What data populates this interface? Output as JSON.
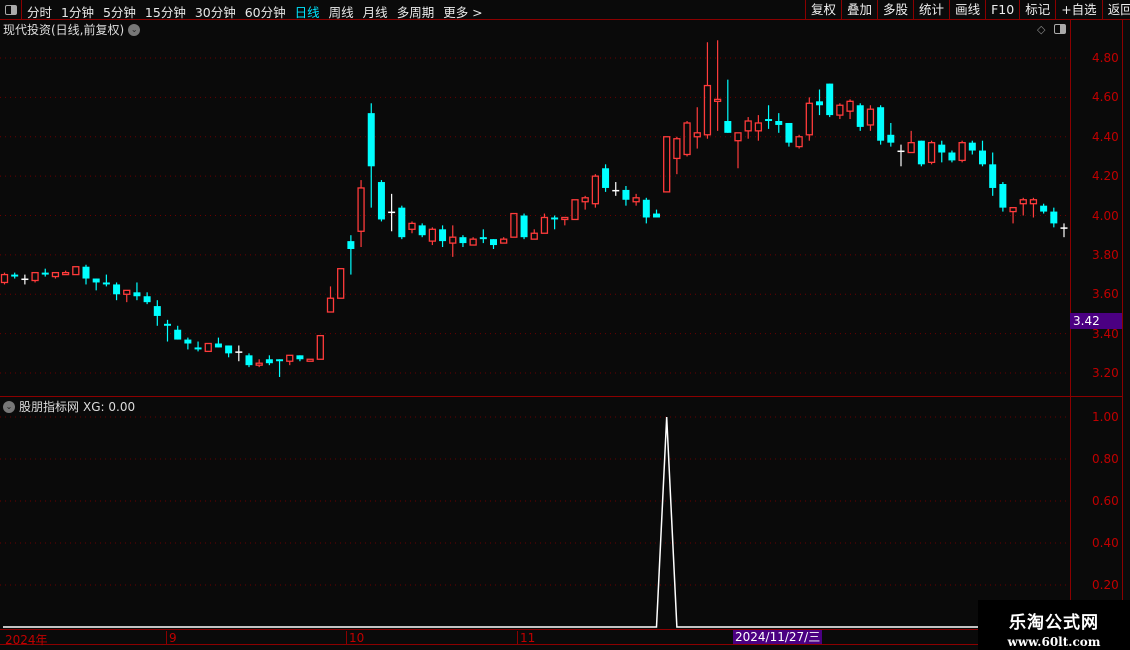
{
  "toolbar": {
    "periods": [
      "分时",
      "1分钟",
      "5分钟",
      "15分钟",
      "30分钟",
      "60分钟",
      "日线",
      "周线",
      "月线",
      "多周期",
      "更多 >"
    ],
    "active_period": "日线",
    "buttons": [
      "复权",
      "叠加",
      "多股",
      "统计",
      "画线",
      "F10",
      "标记",
      "+自选",
      "返回"
    ]
  },
  "main_title": "现代投资(日线,前复权)",
  "indicator": {
    "title": "股朋指标网",
    "readout": "XG: 0.00"
  },
  "price_axis": {
    "labels": [
      "4.80",
      "4.60",
      "4.40",
      "4.20",
      "4.00",
      "3.80",
      "3.60",
      "3.40",
      "3.20"
    ],
    "current_price": "3.42"
  },
  "indicator_axis": {
    "labels": [
      "1.00",
      "0.80",
      "0.60",
      "0.40",
      "0.20"
    ]
  },
  "date_axis": {
    "labels": [
      "2024年",
      "9",
      "10",
      "11"
    ],
    "selected_date": "2024/11/27/三"
  },
  "watermark": {
    "name": "乐淘公式网",
    "url": "www.60lt.com"
  },
  "colors": {
    "up": "#ff3b3b",
    "down": "#00ffff",
    "flat": "#ffffff",
    "grid": "#6b0000",
    "accent": "#4b0082"
  },
  "chart_data": [
    {
      "type": "candlestick",
      "ylim": [
        3.1,
        4.95
      ],
      "ticks": [
        4.8,
        4.6,
        4.4,
        4.2,
        4.0,
        3.8,
        3.6,
        3.4,
        3.2
      ],
      "grid": true,
      "ohlc": [
        [
          3.66,
          3.71,
          3.65,
          3.7
        ],
        [
          3.7,
          3.71,
          3.68,
          3.69
        ],
        [
          3.68,
          3.7,
          3.65,
          3.68
        ],
        [
          3.67,
          3.71,
          3.66,
          3.71
        ],
        [
          3.71,
          3.73,
          3.69,
          3.7
        ],
        [
          3.69,
          3.71,
          3.68,
          3.71
        ],
        [
          3.7,
          3.72,
          3.7,
          3.71
        ],
        [
          3.7,
          3.74,
          3.7,
          3.74
        ],
        [
          3.74,
          3.75,
          3.65,
          3.68
        ],
        [
          3.68,
          3.68,
          3.62,
          3.66
        ],
        [
          3.66,
          3.7,
          3.64,
          3.65
        ],
        [
          3.65,
          3.66,
          3.57,
          3.6
        ],
        [
          3.6,
          3.62,
          3.56,
          3.62
        ],
        [
          3.61,
          3.66,
          3.57,
          3.59
        ],
        [
          3.59,
          3.61,
          3.55,
          3.56
        ],
        [
          3.54,
          3.57,
          3.44,
          3.49
        ],
        [
          3.45,
          3.47,
          3.36,
          3.44
        ],
        [
          3.42,
          3.44,
          3.37,
          3.37
        ],
        [
          3.37,
          3.38,
          3.32,
          3.35
        ],
        [
          3.33,
          3.36,
          3.31,
          3.32
        ],
        [
          3.31,
          3.35,
          3.31,
          3.35
        ],
        [
          3.35,
          3.38,
          3.33,
          3.33
        ],
        [
          3.34,
          3.34,
          3.28,
          3.3
        ],
        [
          3.31,
          3.34,
          3.26,
          3.31
        ],
        [
          3.29,
          3.3,
          3.23,
          3.24
        ],
        [
          3.24,
          3.27,
          3.23,
          3.25
        ],
        [
          3.27,
          3.29,
          3.24,
          3.25
        ],
        [
          3.27,
          3.27,
          3.18,
          3.26
        ],
        [
          3.26,
          3.29,
          3.24,
          3.29
        ],
        [
          3.29,
          3.29,
          3.26,
          3.27
        ],
        [
          3.26,
          3.27,
          3.26,
          3.27
        ],
        [
          3.27,
          3.39,
          3.27,
          3.39
        ],
        [
          3.51,
          3.64,
          3.51,
          3.58
        ],
        [
          3.58,
          3.73,
          3.58,
          3.73
        ],
        [
          3.87,
          3.9,
          3.7,
          3.83
        ],
        [
          3.92,
          4.18,
          3.84,
          4.14
        ],
        [
          4.52,
          4.57,
          4.04,
          4.25
        ],
        [
          4.17,
          4.18,
          3.97,
          3.98
        ],
        [
          4.02,
          4.11,
          3.92,
          4.02
        ],
        [
          4.04,
          4.05,
          3.88,
          3.89
        ],
        [
          3.93,
          3.97,
          3.91,
          3.96
        ],
        [
          3.95,
          3.96,
          3.89,
          3.9
        ],
        [
          3.87,
          3.94,
          3.85,
          3.93
        ],
        [
          3.93,
          3.95,
          3.84,
          3.87
        ],
        [
          3.86,
          3.95,
          3.79,
          3.89
        ],
        [
          3.89,
          3.9,
          3.84,
          3.86
        ],
        [
          3.85,
          3.89,
          3.85,
          3.88
        ],
        [
          3.89,
          3.93,
          3.86,
          3.88
        ],
        [
          3.88,
          3.88,
          3.83,
          3.85
        ],
        [
          3.86,
          3.89,
          3.86,
          3.88
        ],
        [
          3.89,
          4.01,
          3.89,
          4.01
        ],
        [
          4.0,
          4.01,
          3.88,
          3.89
        ],
        [
          3.88,
          3.93,
          3.88,
          3.91
        ],
        [
          3.91,
          4.01,
          3.91,
          3.99
        ],
        [
          3.99,
          4.0,
          3.93,
          3.98
        ],
        [
          3.98,
          3.99,
          3.95,
          3.99
        ],
        [
          3.98,
          4.08,
          3.98,
          4.08
        ],
        [
          4.07,
          4.1,
          4.03,
          4.09
        ],
        [
          4.06,
          4.21,
          4.04,
          4.2
        ],
        [
          4.24,
          4.26,
          4.12,
          4.14
        ],
        [
          4.13,
          4.17,
          4.1,
          4.13
        ],
        [
          4.13,
          4.15,
          4.05,
          4.08
        ],
        [
          4.07,
          4.11,
          4.05,
          4.09
        ],
        [
          4.08,
          4.09,
          3.96,
          3.99
        ],
        [
          4.01,
          4.03,
          3.99,
          3.99
        ],
        [
          4.12,
          4.4,
          4.12,
          4.4
        ],
        [
          4.29,
          4.4,
          4.21,
          4.39
        ],
        [
          4.31,
          4.48,
          4.3,
          4.47
        ],
        [
          4.4,
          4.55,
          4.34,
          4.42
        ],
        [
          4.41,
          4.88,
          4.39,
          4.66
        ],
        [
          4.58,
          4.89,
          4.43,
          4.59
        ],
        [
          4.48,
          4.69,
          4.42,
          4.42
        ],
        [
          4.38,
          4.42,
          4.24,
          4.42
        ],
        [
          4.43,
          4.5,
          4.39,
          4.48
        ],
        [
          4.43,
          4.51,
          4.38,
          4.47
        ],
        [
          4.49,
          4.56,
          4.44,
          4.48
        ],
        [
          4.48,
          4.52,
          4.42,
          4.46
        ],
        [
          4.47,
          4.47,
          4.35,
          4.37
        ],
        [
          4.35,
          4.41,
          4.34,
          4.4
        ],
        [
          4.41,
          4.6,
          4.38,
          4.57
        ],
        [
          4.58,
          4.64,
          4.51,
          4.56
        ],
        [
          4.67,
          4.67,
          4.5,
          4.51
        ],
        [
          4.51,
          4.57,
          4.49,
          4.56
        ],
        [
          4.53,
          4.59,
          4.49,
          4.58
        ],
        [
          4.56,
          4.57,
          4.43,
          4.45
        ],
        [
          4.46,
          4.56,
          4.43,
          4.54
        ],
        [
          4.55,
          4.56,
          4.36,
          4.38
        ],
        [
          4.41,
          4.47,
          4.35,
          4.37
        ],
        [
          4.33,
          4.36,
          4.25,
          4.33
        ],
        [
          4.32,
          4.43,
          4.32,
          4.37
        ],
        [
          4.38,
          4.38,
          4.25,
          4.26
        ],
        [
          4.27,
          4.38,
          4.26,
          4.37
        ],
        [
          4.36,
          4.38,
          4.27,
          4.32
        ],
        [
          4.32,
          4.33,
          4.27,
          4.28
        ],
        [
          4.28,
          4.38,
          4.27,
          4.37
        ],
        [
          4.37,
          4.38,
          4.31,
          4.33
        ],
        [
          4.33,
          4.38,
          4.25,
          4.26
        ],
        [
          4.26,
          4.32,
          4.1,
          4.14
        ],
        [
          4.16,
          4.17,
          4.02,
          4.04
        ],
        [
          4.02,
          4.04,
          3.96,
          4.04
        ],
        [
          4.06,
          4.09,
          4.0,
          4.08
        ],
        [
          4.06,
          4.09,
          3.99,
          4.08
        ],
        [
          4.05,
          4.06,
          4.01,
          4.02
        ],
        [
          4.02,
          4.04,
          3.94,
          3.96
        ],
        [
          3.94,
          3.96,
          3.89,
          3.94
        ]
      ]
    },
    {
      "type": "line",
      "series": [
        {
          "name": "XG",
          "values": [
            0,
            0,
            0,
            0,
            0,
            0,
            0,
            0,
            0,
            0,
            0,
            0,
            0,
            0,
            0,
            0,
            0,
            0,
            0,
            0,
            0,
            0,
            0,
            0,
            0,
            0,
            0,
            0,
            0,
            0,
            0,
            0,
            0,
            0,
            0,
            0,
            0,
            0,
            0,
            0,
            0,
            0,
            0,
            0,
            0,
            0,
            0,
            0,
            0,
            0,
            0,
            0,
            0,
            0,
            0,
            0,
            0,
            0,
            0,
            0,
            0,
            0,
            0,
            0,
            0,
            1,
            0,
            0,
            0,
            0,
            0,
            0,
            0,
            0,
            0,
            0,
            0,
            0,
            0,
            0,
            0,
            0,
            0,
            0,
            0,
            0,
            0,
            0,
            0,
            0,
            0,
            0,
            0,
            0,
            0,
            0,
            0,
            0,
            0,
            0,
            0,
            0,
            0,
            0,
            0
          ]
        }
      ],
      "ylim": [
        0,
        1.0
      ],
      "ticks": [
        1.0,
        0.8,
        0.6,
        0.4,
        0.2
      ],
      "grid": true
    }
  ]
}
